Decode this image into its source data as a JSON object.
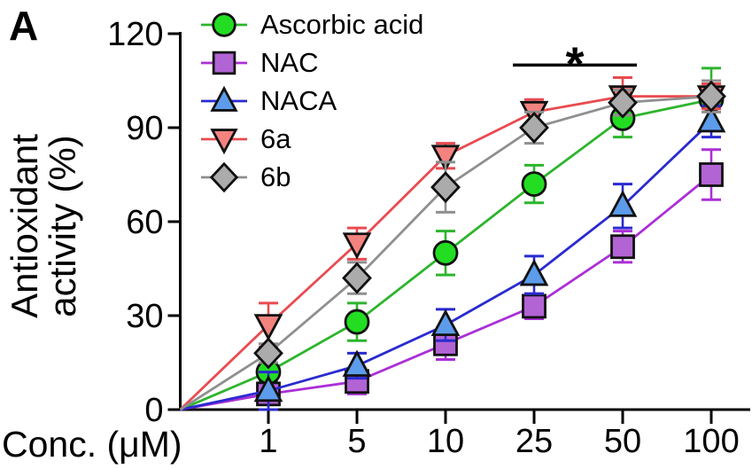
{
  "panel_label": "A",
  "axes": {
    "y_label_line1": "Antioxidant",
    "y_label_line2": "activity (%)",
    "x_label": "Conc. (μM)"
  },
  "chart_data": {
    "type": "line",
    "title": "",
    "xlabel": "Conc. (μM)",
    "ylabel": "Antioxidant activity (%)",
    "x_categories": [
      "1",
      "5",
      "10",
      "25",
      "50",
      "100"
    ],
    "y_ticks": [
      0,
      30,
      60,
      90,
      120
    ],
    "ylim": [
      0,
      120
    ],
    "x_scale": "categorical",
    "lines_start_at_origin": true,
    "grid": false,
    "legend_position": "top-left-inside",
    "error_bars": "plus-minus, colored same as series line",
    "series": [
      {
        "name": "Ascorbic acid",
        "marker": "circle",
        "line_color": "#2db52d",
        "fill_color": "#22dd22",
        "edge_color": "#111111",
        "values": [
          12,
          28,
          50,
          72,
          93,
          99
        ],
        "errors": [
          3,
          6,
          7,
          6,
          6,
          10
        ]
      },
      {
        "name": "NAC",
        "marker": "square",
        "line_color": "#ab2fd6",
        "fill_color": "#b263d4",
        "edge_color": "#111111",
        "values": [
          5,
          9,
          21,
          33,
          52,
          75
        ],
        "errors": [
          2,
          4,
          5,
          4,
          5,
          8
        ]
      },
      {
        "name": "NACA",
        "marker": "triangle-up",
        "line_color": "#2a2ad0",
        "fill_color": "#5c9cea",
        "edge_color": "#111111",
        "values": [
          6,
          14,
          27,
          43,
          65,
          92
        ],
        "errors": [
          6,
          4,
          5,
          6,
          7,
          5
        ]
      },
      {
        "name": "6a",
        "marker": "triangle-down",
        "line_color": "#e84b50",
        "fill_color": "#f4837f",
        "edge_color": "#111111",
        "values": [
          27,
          53,
          81,
          95,
          100,
          100
        ],
        "errors": [
          7,
          5,
          4,
          4,
          6,
          4
        ]
      },
      {
        "name": "6b",
        "marker": "diamond",
        "line_color": "#8f8f8f",
        "fill_color": "#ababab",
        "edge_color": "#111111",
        "values": [
          18,
          42,
          71,
          90,
          98,
          100
        ],
        "errors": [
          3,
          5,
          8,
          5,
          4,
          5
        ]
      }
    ],
    "annotations": [
      {
        "type": "significance-bar",
        "label": "*",
        "x_from_category": "25",
        "x_to_category": "50",
        "y_value": 110,
        "color": "#000000"
      }
    ]
  }
}
